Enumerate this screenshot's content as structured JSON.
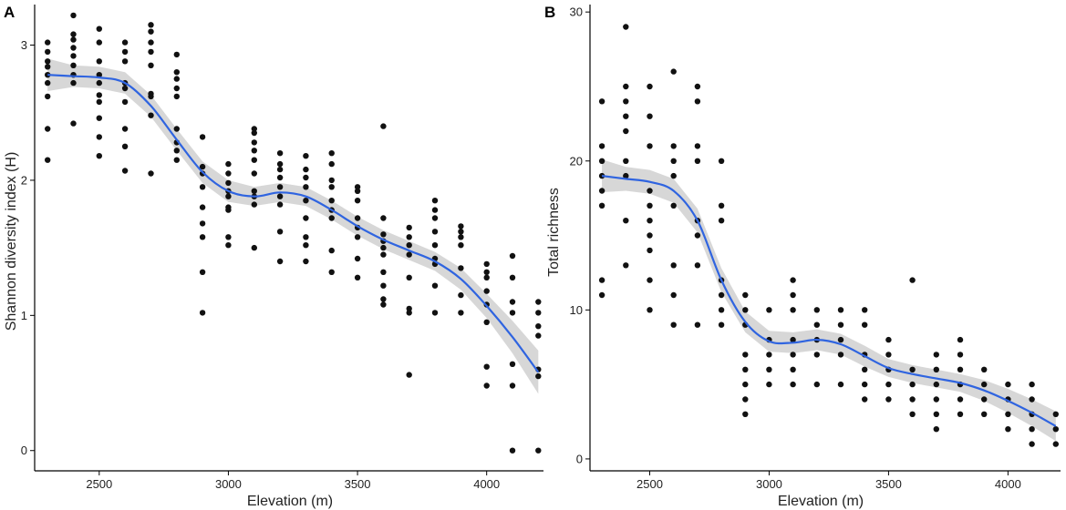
{
  "chart_data": [
    {
      "type": "scatter",
      "panel_label": "A",
      "xlabel": "Elevation (m)",
      "ylabel": "Shannon diversity index (H)",
      "xlim": [
        2250,
        4220
      ],
      "ylim": [
        -0.15,
        3.3
      ],
      "xticks": [
        2500,
        3000,
        3500,
        4000
      ],
      "yticks": [
        0,
        1,
        2,
        3
      ],
      "xtick_labels": [
        "2500",
        "3000",
        "3500",
        "4000"
      ],
      "ytick_labels": [
        "0",
        "1",
        "2",
        "3"
      ],
      "point_color": "#111111",
      "fit_color": "#2f64e0",
      "band_color": "#bdbdbd",
      "columns": [
        {
          "x": 2300,
          "y": [
            2.15,
            2.38,
            2.62,
            2.72,
            2.78,
            2.84,
            2.88,
            2.95,
            3.02
          ]
        },
        {
          "x": 2400,
          "y": [
            2.42,
            2.72,
            2.78,
            2.85,
            2.92,
            2.98,
            3.04,
            3.08,
            3.22
          ]
        },
        {
          "x": 2500,
          "y": [
            2.18,
            2.32,
            2.46,
            2.58,
            2.63,
            2.72,
            2.78,
            2.88,
            3.02,
            3.12
          ]
        },
        {
          "x": 2600,
          "y": [
            2.07,
            2.25,
            2.38,
            2.58,
            2.68,
            2.72,
            2.88,
            2.95,
            3.02
          ]
        },
        {
          "x": 2700,
          "y": [
            2.05,
            2.48,
            2.62,
            2.64,
            2.85,
            2.95,
            3.02,
            3.1,
            3.15
          ]
        },
        {
          "x": 2800,
          "y": [
            2.15,
            2.22,
            2.28,
            2.38,
            2.62,
            2.68,
            2.75,
            2.8,
            2.93
          ]
        },
        {
          "x": 2900,
          "y": [
            1.02,
            1.32,
            1.58,
            1.68,
            1.8,
            1.95,
            2.05,
            2.1,
            2.32
          ]
        },
        {
          "x": 3000,
          "y": [
            1.52,
            1.58,
            1.78,
            1.8,
            1.88,
            1.92,
            1.98,
            2.05,
            2.12
          ]
        },
        {
          "x": 3100,
          "y": [
            1.5,
            1.82,
            1.88,
            1.92,
            2.05,
            2.15,
            2.22,
            2.28,
            2.35,
            2.38
          ]
        },
        {
          "x": 3200,
          "y": [
            1.4,
            1.62,
            1.82,
            1.88,
            1.95,
            2.02,
            2.08,
            2.12,
            2.2
          ]
        },
        {
          "x": 3300,
          "y": [
            1.4,
            1.52,
            1.58,
            1.72,
            1.85,
            1.95,
            2.02,
            2.08,
            2.18
          ]
        },
        {
          "x": 3400,
          "y": [
            1.32,
            1.48,
            1.72,
            1.78,
            1.85,
            1.95,
            2.0,
            2.12,
            2.2
          ]
        },
        {
          "x": 3500,
          "y": [
            1.28,
            1.42,
            1.58,
            1.65,
            1.72,
            1.85,
            1.92,
            1.95
          ]
        },
        {
          "x": 3600,
          "y": [
            1.08,
            1.12,
            1.22,
            1.32,
            1.45,
            1.5,
            1.55,
            1.6,
            1.72,
            2.4
          ]
        },
        {
          "x": 3700,
          "y": [
            0.56,
            1.02,
            1.05,
            1.28,
            1.45,
            1.52,
            1.58,
            1.65
          ]
        },
        {
          "x": 3800,
          "y": [
            1.02,
            1.22,
            1.38,
            1.42,
            1.52,
            1.62,
            1.72,
            1.78,
            1.85
          ]
        },
        {
          "x": 3900,
          "y": [
            1.02,
            1.15,
            1.35,
            1.52,
            1.58,
            1.62,
            1.66
          ]
        },
        {
          "x": 4000,
          "y": [
            0.48,
            0.62,
            0.95,
            1.08,
            1.18,
            1.28,
            1.32,
            1.38
          ]
        },
        {
          "x": 4100,
          "y": [
            0.0,
            0.48,
            0.64,
            1.02,
            1.1,
            1.28,
            1.44
          ]
        },
        {
          "x": 4200,
          "y": [
            0.0,
            0.55,
            0.6,
            0.85,
            0.92,
            1.02,
            1.1
          ]
        }
      ],
      "fit": {
        "x": [
          2300,
          2400,
          2500,
          2600,
          2700,
          2800,
          2900,
          3000,
          3100,
          3200,
          3300,
          3400,
          3500,
          3600,
          3700,
          3800,
          3900,
          4000,
          4100,
          4200
        ],
        "y": [
          2.78,
          2.77,
          2.76,
          2.72,
          2.55,
          2.3,
          2.06,
          1.92,
          1.88,
          1.91,
          1.88,
          1.78,
          1.66,
          1.56,
          1.48,
          1.4,
          1.27,
          1.07,
          0.84,
          0.58
        ],
        "lower": [
          2.66,
          2.69,
          2.68,
          2.64,
          2.47,
          2.22,
          1.98,
          1.84,
          1.81,
          1.84,
          1.81,
          1.71,
          1.59,
          1.49,
          1.41,
          1.33,
          1.19,
          0.98,
          0.72,
          0.42
        ],
        "upper": [
          2.9,
          2.85,
          2.84,
          2.8,
          2.63,
          2.38,
          2.14,
          2.0,
          1.95,
          1.98,
          1.95,
          1.85,
          1.73,
          1.63,
          1.55,
          1.47,
          1.35,
          1.16,
          0.96,
          0.74
        ]
      }
    },
    {
      "type": "scatter",
      "panel_label": "B",
      "xlabel": "Elevation (m)",
      "ylabel": "Total richness",
      "xlim": [
        2250,
        4220
      ],
      "ylim": [
        -0.8,
        30.5
      ],
      "xticks": [
        2500,
        3000,
        3500,
        4000
      ],
      "yticks": [
        0,
        10,
        20,
        30
      ],
      "xtick_labels": [
        "2500",
        "3000",
        "3500",
        "4000"
      ],
      "ytick_labels": [
        "0",
        "10",
        "20",
        "30"
      ],
      "point_color": "#111111",
      "fit_color": "#2f64e0",
      "band_color": "#bdbdbd",
      "columns": [
        {
          "x": 2300,
          "y": [
            11,
            12,
            17,
            18,
            19,
            20,
            21,
            24
          ]
        },
        {
          "x": 2400,
          "y": [
            13,
            16,
            19,
            20,
            22,
            23,
            24,
            25,
            29
          ]
        },
        {
          "x": 2500,
          "y": [
            10,
            12,
            14,
            15,
            16,
            17,
            18,
            21,
            23,
            25
          ]
        },
        {
          "x": 2600,
          "y": [
            9,
            11,
            13,
            17,
            19,
            20,
            21,
            26
          ]
        },
        {
          "x": 2700,
          "y": [
            9,
            13,
            15,
            16,
            20,
            21,
            24,
            25
          ]
        },
        {
          "x": 2800,
          "y": [
            9,
            10,
            11,
            12,
            16,
            17,
            20
          ]
        },
        {
          "x": 2900,
          "y": [
            3,
            4,
            5,
            6,
            7,
            9,
            10,
            11
          ]
        },
        {
          "x": 3000,
          "y": [
            5,
            6,
            7,
            8,
            10
          ]
        },
        {
          "x": 3100,
          "y": [
            5,
            6,
            7,
            8,
            10,
            11,
            12
          ]
        },
        {
          "x": 3200,
          "y": [
            5,
            7,
            8,
            9,
            10
          ]
        },
        {
          "x": 3300,
          "y": [
            5,
            7,
            8,
            9,
            10
          ]
        },
        {
          "x": 3400,
          "y": [
            4,
            5,
            6,
            7,
            9,
            10
          ]
        },
        {
          "x": 3500,
          "y": [
            4,
            5,
            6,
            7,
            8
          ]
        },
        {
          "x": 3600,
          "y": [
            3,
            4,
            5,
            6,
            12
          ]
        },
        {
          "x": 3700,
          "y": [
            2,
            3,
            4,
            5,
            6,
            7
          ]
        },
        {
          "x": 3800,
          "y": [
            3,
            4,
            5,
            6,
            7,
            8
          ]
        },
        {
          "x": 3900,
          "y": [
            3,
            4,
            5,
            6
          ]
        },
        {
          "x": 4000,
          "y": [
            2,
            3,
            4,
            5
          ]
        },
        {
          "x": 4100,
          "y": [
            1,
            2,
            3,
            4,
            5
          ]
        },
        {
          "x": 4200,
          "y": [
            1,
            2,
            3
          ]
        }
      ],
      "fit": {
        "x": [
          2300,
          2400,
          2500,
          2600,
          2700,
          2800,
          2900,
          3000,
          3100,
          3200,
          3300,
          3400,
          3500,
          3600,
          3700,
          3800,
          3900,
          4000,
          4100,
          4200
        ],
        "y": [
          19.0,
          18.8,
          18.6,
          18.0,
          16.0,
          12.0,
          9.2,
          7.9,
          7.8,
          8.0,
          7.7,
          6.9,
          6.1,
          5.7,
          5.4,
          5.1,
          4.6,
          3.9,
          3.1,
          2.2
        ],
        "lower": [
          17.9,
          18.0,
          17.8,
          17.2,
          15.2,
          11.2,
          8.5,
          7.2,
          7.1,
          7.3,
          7.0,
          6.2,
          5.5,
          5.1,
          4.8,
          4.5,
          3.9,
          3.1,
          2.2,
          1.2
        ],
        "upper": [
          20.1,
          19.6,
          19.4,
          18.8,
          16.8,
          12.8,
          9.9,
          8.6,
          8.5,
          8.7,
          8.4,
          7.6,
          6.7,
          6.3,
          6.0,
          5.7,
          5.3,
          4.7,
          4.0,
          3.2
        ]
      }
    }
  ]
}
